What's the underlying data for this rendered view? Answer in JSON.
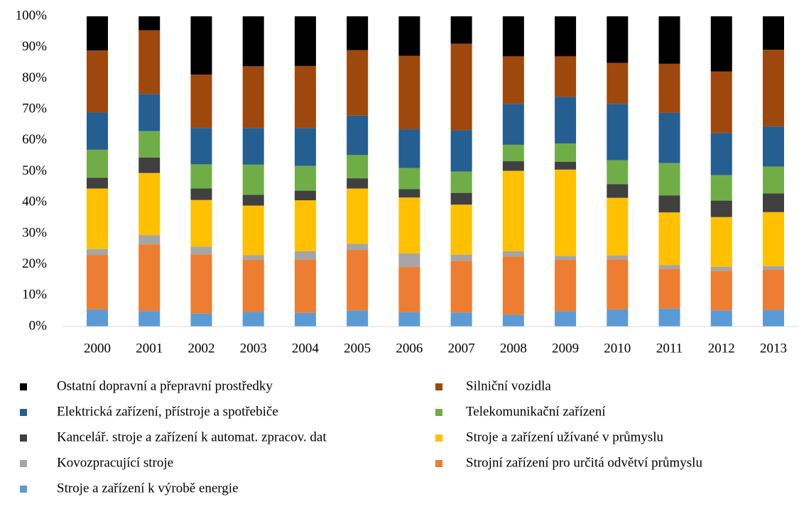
{
  "chart_data": {
    "type": "stacked_bar",
    "categories": [
      "2000",
      "2001",
      "2002",
      "2003",
      "2004",
      "2005",
      "2006",
      "2007",
      "2008",
      "2009",
      "2010",
      "2011",
      "2012",
      "2013"
    ],
    "series": [
      {
        "name": "Ostatní dopravní a přepravní prostředky",
        "color": "#000000",
        "values": [
          11,
          4.5,
          18.8,
          16.1,
          16,
          10.9,
          12.7,
          8.8,
          12.9,
          12.9,
          15,
          15.3,
          17.8,
          10.8
        ]
      },
      {
        "name": "Silniční vozidla",
        "color": "#9e480e",
        "values": [
          20,
          20.5,
          17.2,
          19.9,
          20,
          21.1,
          23.7,
          27.9,
          15.3,
          13.1,
          13.2,
          15.8,
          19.8,
          24.7
        ]
      },
      {
        "name": "Elektrická zařízení, přístroje a spotřebiče",
        "color": "#255e91",
        "values": [
          12,
          12,
          11.7,
          11.8,
          12.2,
          12.7,
          12.5,
          13.3,
          13.2,
          15,
          18.2,
          16.2,
          13.6,
          12.9
        ]
      },
      {
        "name": "Telekomunikační zařízení",
        "color": "#70ad47",
        "values": [
          9,
          8.5,
          7.8,
          9.7,
          8,
          7.5,
          6.8,
          6.9,
          5.3,
          5.9,
          7.7,
          10.4,
          8.2,
          8.7
        ]
      },
      {
        "name": "Kancelář. stroje a zařízení k automat. zpracov. dat",
        "color": "#404040",
        "values": [
          3.5,
          5,
          3.7,
          3.5,
          3.1,
          3.3,
          2.7,
          3.8,
          3.1,
          2.5,
          4.4,
          5.5,
          5.3,
          6
        ]
      },
      {
        "name": "Stroje a zařízení užívané v průmyslu",
        "color": "#ffc000",
        "values": [
          19.5,
          20,
          15,
          16,
          16.4,
          17.8,
          18,
          16.1,
          25.9,
          27.8,
          18.6,
          17,
          16,
          17.4
        ]
      },
      {
        "name": "Kovozpracující stroje",
        "color": "#a5a5a5",
        "values": [
          2,
          3,
          2.5,
          1.5,
          2.8,
          2,
          4.4,
          2,
          1.7,
          1.3,
          1.3,
          1.2,
          1.3,
          1.2
        ]
      },
      {
        "name": "Strojní zařízení pro určitá odvětví průmyslu",
        "color": "#ed7d31",
        "values": [
          17.5,
          21.5,
          19.1,
          16.8,
          17.1,
          19.5,
          14.6,
          16.7,
          18.8,
          16.6,
          16.1,
          12.8,
          12.8,
          12.9
        ]
      },
      {
        "name": "Stroje a zařízení k výrobě energie",
        "color": "#5b9bd5",
        "values": [
          5.5,
          5,
          4.2,
          4.7,
          4.4,
          5.2,
          4.6,
          4.5,
          3.8,
          4.9,
          5.5,
          5.8,
          5.2,
          5.4
        ]
      }
    ],
    "ylim": [
      0,
      100
    ],
    "yticks": [
      {
        "value": 0,
        "label": "0%"
      },
      {
        "value": 10,
        "label": "10%"
      },
      {
        "value": 20,
        "label": "20%"
      },
      {
        "value": 30,
        "label": "30%"
      },
      {
        "value": 40,
        "label": "40%"
      },
      {
        "value": 50,
        "label": "50%"
      },
      {
        "value": 60,
        "label": "60%"
      },
      {
        "value": 70,
        "label": "70%"
      },
      {
        "value": 80,
        "label": "80%"
      },
      {
        "value": 90,
        "label": "90%"
      },
      {
        "value": 100,
        "label": "100%"
      }
    ],
    "grid": false,
    "legend": "bottom"
  }
}
